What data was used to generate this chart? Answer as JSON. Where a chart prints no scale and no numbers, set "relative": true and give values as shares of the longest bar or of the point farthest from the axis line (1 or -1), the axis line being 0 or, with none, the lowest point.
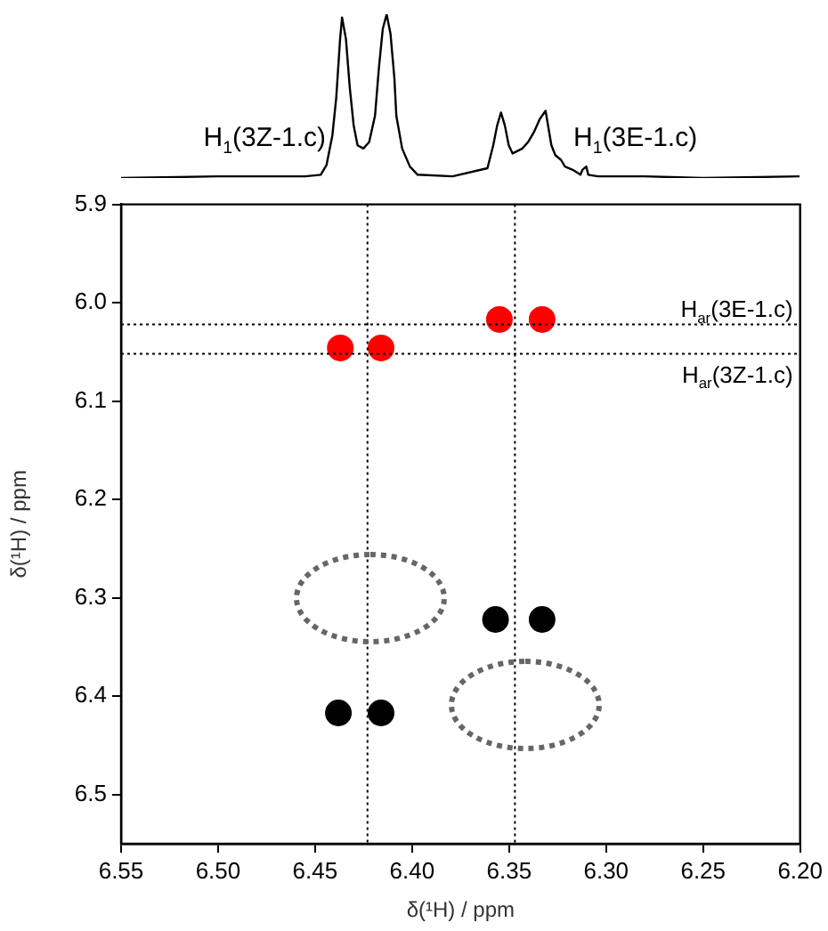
{
  "chart_data": [
    {
      "type": "line",
      "relative": true,
      "tick_labels": false,
      "xlim": [
        6.55,
        6.2
      ],
      "line_style": "solid",
      "series": [
        {
          "color": "#000000",
          "x": [
            6.55,
            6.5,
            6.47,
            6.455,
            6.447,
            6.444,
            6.441,
            6.439,
            6.437,
            6.436,
            6.434,
            6.432,
            6.43,
            6.428,
            6.425,
            6.422,
            6.419,
            6.417,
            6.415,
            6.413,
            6.411,
            6.409,
            6.408,
            6.405,
            6.401,
            6.397,
            6.379,
            6.361,
            6.358,
            6.356,
            6.354,
            6.352,
            6.35,
            6.348,
            6.343,
            6.34,
            6.337,
            6.334,
            6.331,
            6.33,
            6.328,
            6.326,
            6.323,
            6.321,
            6.317,
            6.313,
            6.312,
            6.31,
            6.309,
            6.304,
            6.28,
            6.25,
            6.2
          ],
          "values": [
            0,
            0.01,
            0.01,
            0.01,
            0.02,
            0.08,
            0.26,
            0.49,
            0.85,
            0.98,
            0.85,
            0.55,
            0.32,
            0.2,
            0.18,
            0.22,
            0.38,
            0.67,
            0.91,
            1.0,
            0.88,
            0.61,
            0.38,
            0.18,
            0.07,
            0.02,
            0.01,
            0.06,
            0.2,
            0.32,
            0.4,
            0.32,
            0.2,
            0.15,
            0.18,
            0.22,
            0.28,
            0.36,
            0.41,
            0.34,
            0.2,
            0.14,
            0.11,
            0.07,
            0.05,
            0.02,
            0.05,
            0.07,
            0.02,
            0.01,
            0.01,
            0,
            0.01
          ]
        }
      ],
      "annotations": [
        "H$_{1}$(3Z-1.c)",
        "H$_{1}$(3E-1.c)"
      ]
    },
    {
      "type": "scatter",
      "marker": "circle",
      "grid": false,
      "xlabel": "δ(¹H) / ppm",
      "ylabel": "δ(¹H) / ppm",
      "xlim": [
        6.55,
        6.2
      ],
      "xticks": [
        6.55,
        {
          "value": 6.5,
          "label": "6.50"
        },
        6.45,
        {
          "value": 6.4,
          "label": "6.40"
        },
        6.35,
        {
          "value": 6.3,
          "label": "6.30"
        },
        6.25,
        {
          "value": 6.2,
          "label": "6.20"
        }
      ],
      "ylim": [
        6.55,
        5.9
      ],
      "yticks": [
        5.9,
        {
          "value": 6,
          "label": "6.0"
        },
        6.1,
        6.2,
        6.3,
        6.4,
        6.5
      ],
      "series": [
        {
          "color": "#ff0000",
          "x": [
            6.437,
            6.416,
            6.355,
            6.333
          ],
          "values": [
            6.046,
            6.046,
            6.017,
            6.017
          ]
        },
        {
          "color": "#000000",
          "x": [
            6.438,
            6.416,
            6.357,
            6.333
          ],
          "values": [
            6.417,
            6.417,
            6.322,
            6.322
          ]
        }
      ],
      "ref_lines": [
        {
          "axis": "x",
          "value": 6.423,
          "line_style": "dotted",
          "color": "#000000"
        },
        {
          "axis": "x",
          "value": 6.347,
          "line_style": "dotted",
          "color": "#000000"
        },
        {
          "axis": "y",
          "value": 6.022,
          "line_style": "dotted",
          "color": "#000000",
          "label": "H$_{ar}$(3E-1.c)"
        },
        {
          "axis": "y",
          "value": 6.052,
          "line_style": "dotted",
          "color": "#000000",
          "label": "H$_{ar}$(3Z-1.c)"
        }
      ]
    }
  ]
}
